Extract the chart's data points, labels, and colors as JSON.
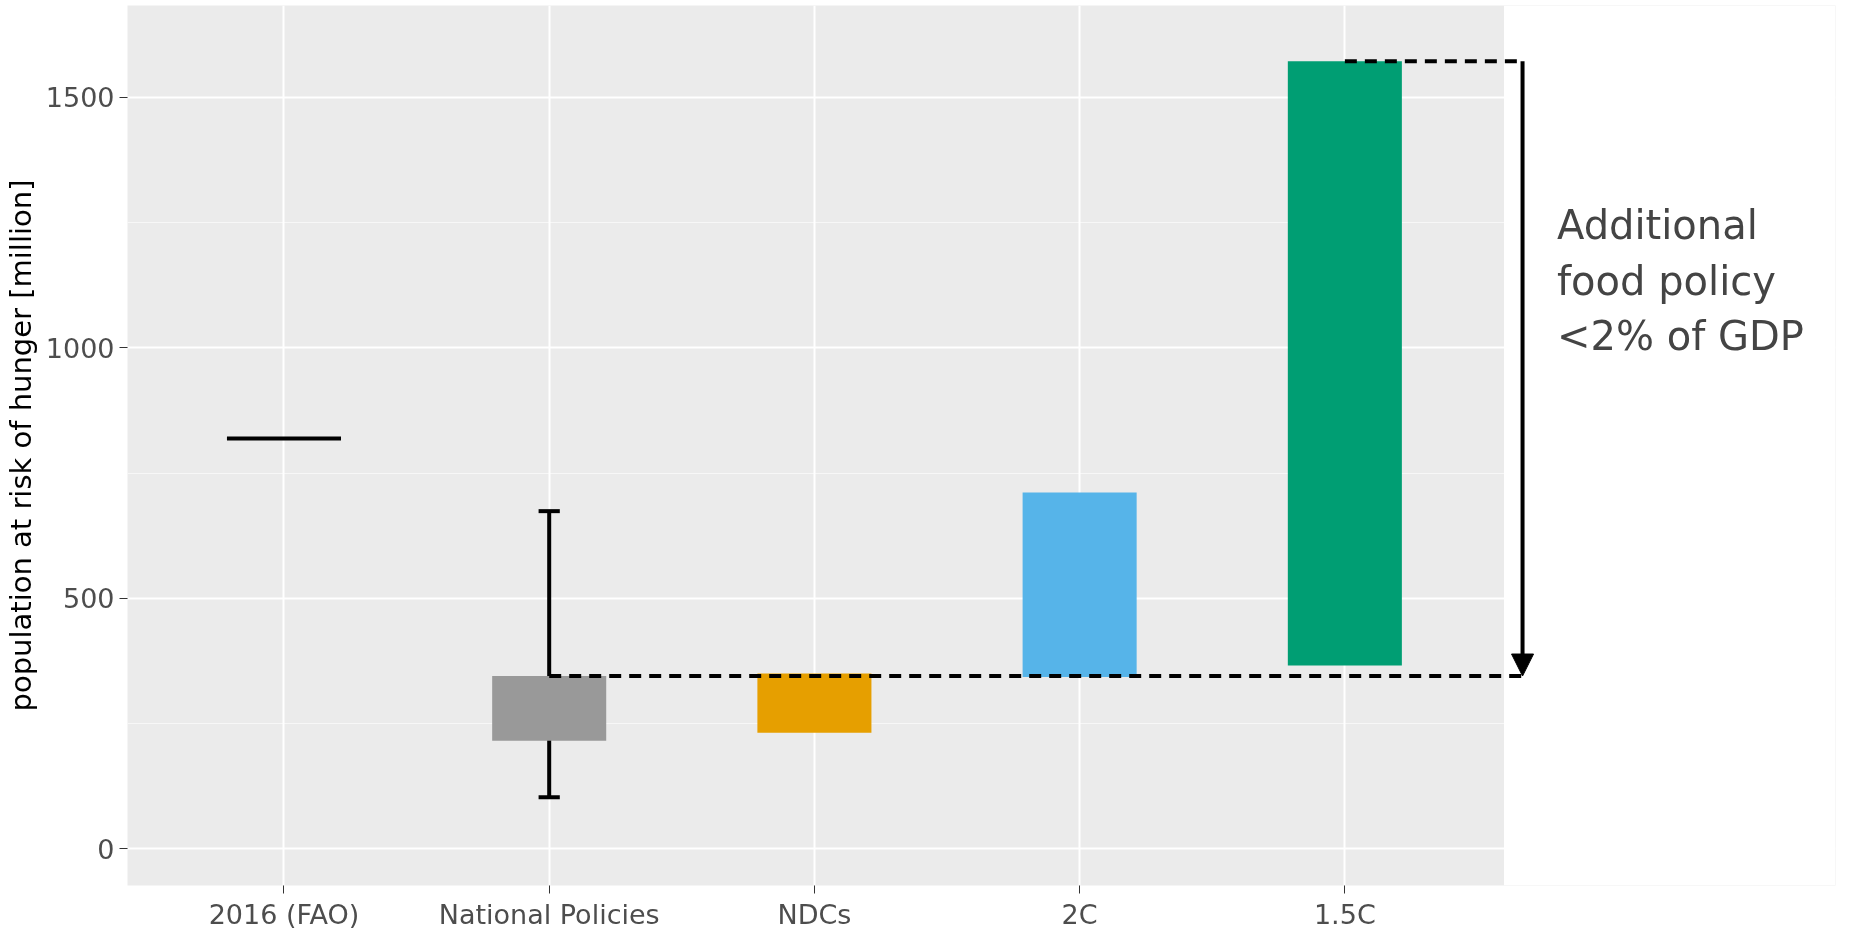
{
  "chart_data": {
    "type": "bar",
    "categories": [
      "2016 (FAO)",
      "National Policies",
      "NDCs",
      "2C",
      "1.5C"
    ],
    "ylabel": "population at risk of hunger [million]",
    "ylim": [
      -73,
      1683
    ],
    "yticks": [
      0,
      500,
      1000,
      1500
    ],
    "grid": true,
    "series": [
      {
        "values": [
          0,
          129,
          118,
          368,
          1206
        ],
        "base": [
          819,
          216,
          232,
          343,
          366
        ],
        "colors": [
          "#000000",
          "#999999",
          "#e69f00",
          "#56b4e9",
          "#009e73"
        ],
        "errors": [
          null,
          [
            103,
            674
          ],
          null,
          null,
          null
        ]
      }
    ],
    "ref_lines": [
      {
        "axis": "y",
        "value": 345,
        "color": "#000000",
        "line_style": "dashed"
      },
      {
        "axis": "y",
        "value": 1572,
        "color": "#000000",
        "line_style": "dashed"
      }
    ],
    "annotations": [
      "Additional\nfood policy\n<2% of GDP"
    ]
  }
}
